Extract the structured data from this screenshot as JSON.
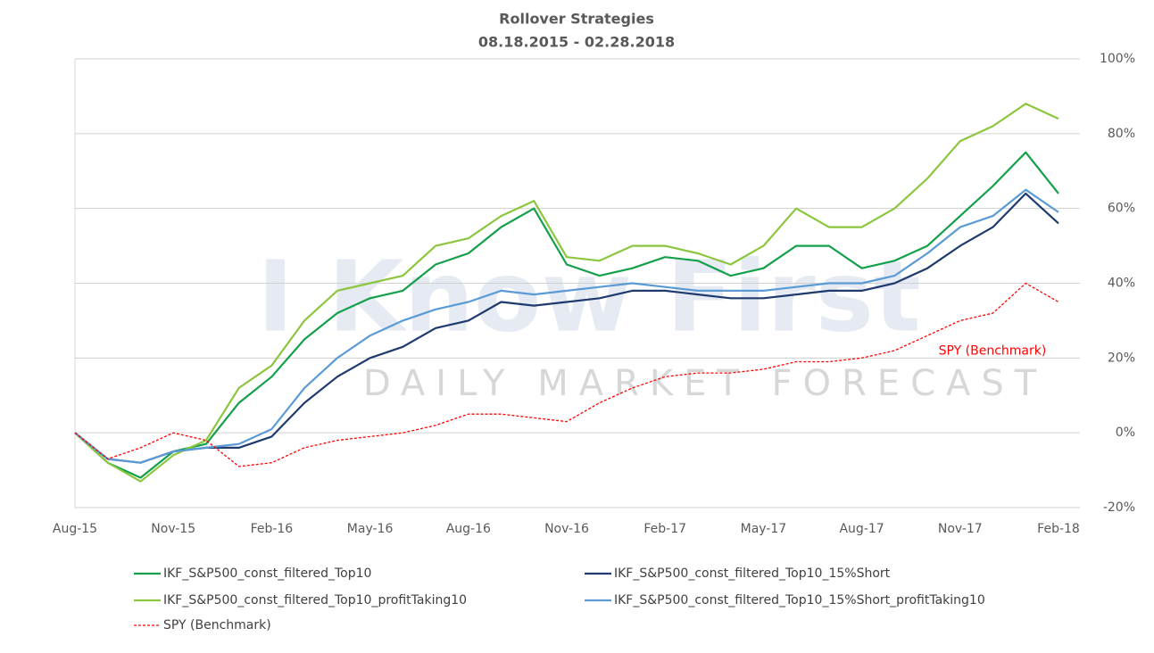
{
  "chart_data": {
    "type": "line",
    "title": "Rollover Strategies",
    "subtitle": "08.18.2015 - 02.28.2018",
    "watermark": [
      "I Know First",
      "DAILY MARKET FORECAST"
    ],
    "categories": [
      "Aug-15",
      null,
      null,
      "Nov-15",
      null,
      null,
      "Feb-16",
      null,
      null,
      "May-16",
      null,
      null,
      "Aug-16",
      null,
      null,
      "Nov-16",
      null,
      null,
      "Feb-17",
      null,
      null,
      "May-17",
      null,
      null,
      "Aug-17",
      null,
      null,
      "Nov-17",
      null,
      null,
      "Feb-18"
    ],
    "ylim": [
      -20,
      100
    ],
    "yticks": [
      {
        "value": -20,
        "label": "-20%"
      },
      {
        "value": 0,
        "label": "0%"
      },
      {
        "value": 20,
        "label": "20%"
      },
      {
        "value": 40,
        "label": "40%"
      },
      {
        "value": 60,
        "label": "60%"
      },
      {
        "value": 80,
        "label": "80%"
      },
      {
        "value": 100,
        "label": "100%"
      }
    ],
    "grid": true,
    "legend": "bottom",
    "series": [
      {
        "name": "IKF_S&P500_const_filtered_Top10",
        "color": "#13a04a",
        "dash": false,
        "values": [
          0,
          -8,
          -12,
          -5,
          -3,
          8,
          15,
          25,
          32,
          36,
          38,
          45,
          48,
          55,
          60,
          45,
          42,
          44,
          47,
          46,
          42,
          44,
          50,
          50,
          44,
          46,
          50,
          58,
          66,
          75,
          64
        ]
      },
      {
        "name": "IKF_S&P500_const_filtered_Top10_15%Short",
        "color": "#1f3a6e",
        "dash": false,
        "values": [
          0,
          -7,
          -8,
          -5,
          -4,
          -4,
          -1,
          8,
          15,
          20,
          23,
          28,
          30,
          35,
          34,
          35,
          36,
          38,
          38,
          37,
          36,
          36,
          37,
          38,
          38,
          40,
          44,
          50,
          55,
          64,
          56
        ]
      },
      {
        "name": "IKF_S&P500_const_filtered_Top10_profitTaking10",
        "color": "#8cc63f",
        "dash": false,
        "values": [
          0,
          -8,
          -13,
          -6,
          -2,
          12,
          18,
          30,
          38,
          40,
          42,
          50,
          52,
          58,
          62,
          47,
          46,
          50,
          50,
          48,
          45,
          50,
          60,
          55,
          55,
          60,
          68,
          78,
          82,
          88,
          84
        ]
      },
      {
        "name": "IKF_S&P500_const_filtered_Top10_15%Short_profitTaking10",
        "color": "#5b9bd5",
        "dash": false,
        "values": [
          0,
          -7,
          -8,
          -5,
          -4,
          -3,
          1,
          12,
          20,
          26,
          30,
          33,
          35,
          38,
          37,
          38,
          39,
          40,
          39,
          38,
          38,
          38,
          39,
          40,
          40,
          42,
          48,
          55,
          58,
          65,
          59
        ]
      },
      {
        "name": "SPY (Benchmark)",
        "color": "#ff0000",
        "dash": true,
        "values": [
          0,
          -7,
          -4,
          0,
          -2,
          -9,
          -8,
          -4,
          -2,
          -1,
          0,
          2,
          5,
          5,
          4,
          3,
          8,
          12,
          15,
          16,
          16,
          17,
          19,
          19,
          20,
          22,
          26,
          30,
          32,
          40,
          35
        ]
      }
    ],
    "annotations": [
      {
        "text": "SPY (Benchmark)",
        "color": "#ff0000"
      }
    ]
  }
}
